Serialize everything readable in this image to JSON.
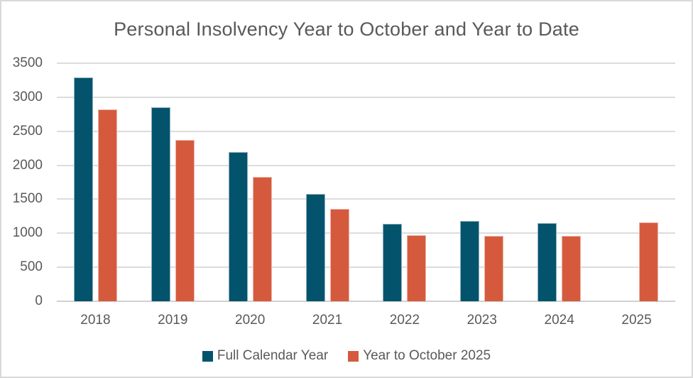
{
  "chart_data": {
    "type": "bar",
    "title": "Personal Insolvency Year to October and Year to Date",
    "categories": [
      "2018",
      "2019",
      "2020",
      "2021",
      "2022",
      "2023",
      "2024",
      "2025"
    ],
    "series": [
      {
        "name": "Full Calendar Year",
        "color": "#04536D",
        "values": [
          3290,
          2850,
          2190,
          1575,
          1140,
          1180,
          1145,
          null
        ]
      },
      {
        "name": "Year to October 2025",
        "color": "#D55A3D",
        "values": [
          2820,
          2375,
          1830,
          1360,
          970,
          965,
          960,
          1160
        ]
      }
    ],
    "xlabel": "",
    "ylabel": "",
    "ylim": [
      0,
      3500
    ],
    "ytick_step": 500,
    "yticks": [
      "0",
      "500",
      "1000",
      "1500",
      "2000",
      "2500",
      "3000",
      "3500"
    ],
    "grid": true,
    "legend_position": "bottom"
  }
}
